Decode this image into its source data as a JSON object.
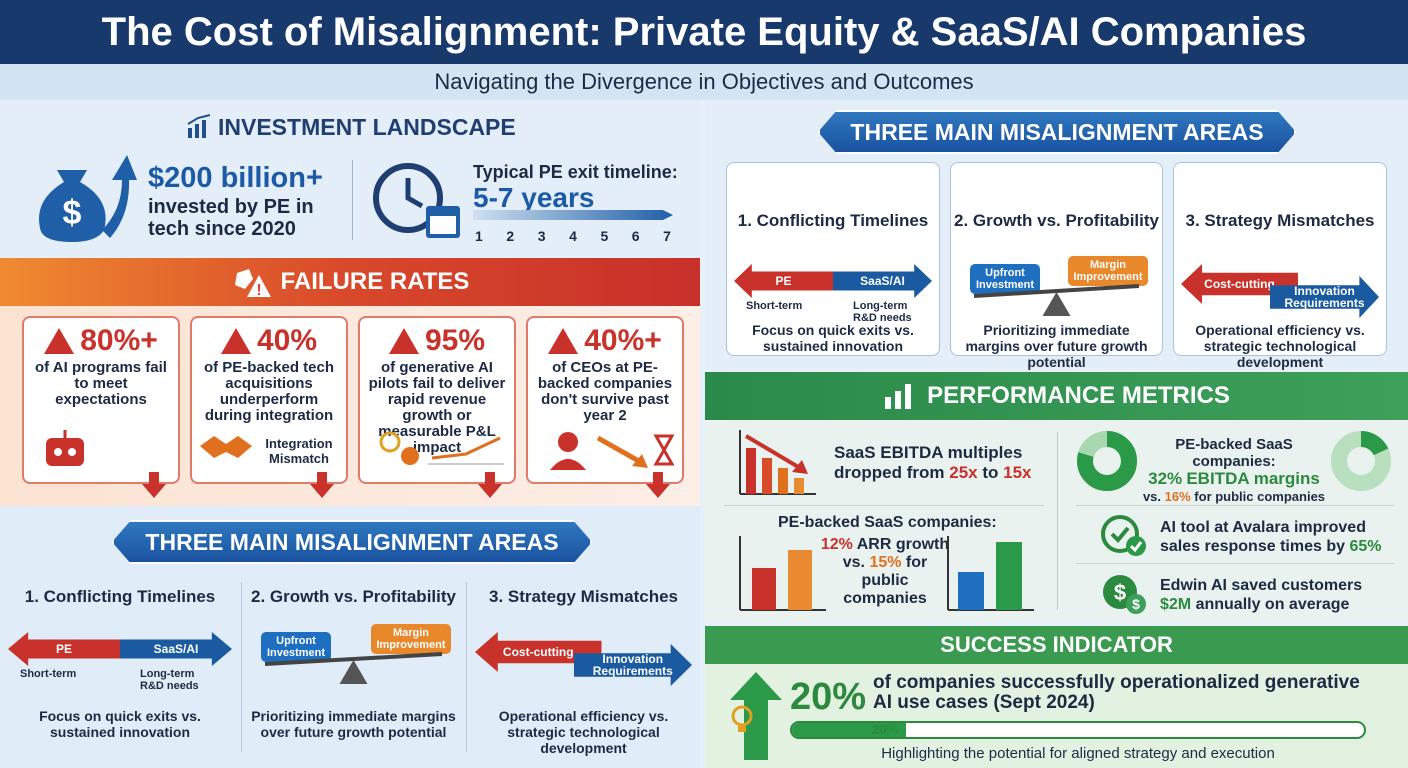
{
  "header": {
    "title": "The Cost of Misalignment: Private Equity & SaaS/AI Companies",
    "subtitle": "Navigating the Divergence in Objectives and Outcomes"
  },
  "investment": {
    "title": "INVESTMENT LANDSCAPE",
    "amount": "$200 billion+",
    "amount_text": "invested by PE in tech since 2020",
    "exit_label": "Typical PE exit timeline:",
    "exit_value": "5-7 years",
    "timeline": [
      "1",
      "2",
      "3",
      "4",
      "5",
      "6",
      "7"
    ]
  },
  "failure": {
    "title": "FAILURE RATES",
    "cards": [
      {
        "stat": "80%+",
        "text": "of AI programs fail to meet expectations"
      },
      {
        "stat": "40%",
        "text": "of PE-backed tech acquisitions underperform during integration",
        "note": "Integration Mismatch"
      },
      {
        "stat": "95%",
        "text": "of generative AI pilots fail to deliver rapid revenue growth or measurable P&L impact"
      },
      {
        "stat": "40%+",
        "text": "of CEOs at PE-backed companies don't survive past year 2"
      }
    ]
  },
  "misalignment_left": {
    "title": "THREE MAIN MISALIGNMENT AREAS",
    "areas": [
      {
        "title": "1. Conflicting Timelines",
        "left": "PE",
        "left_sub": "Short-term",
        "right": "SaaS/AI",
        "right_sub": "Long-term R&D needs",
        "desc": "Focus on quick exits vs. sustained innovation"
      },
      {
        "title": "2. Growth vs. Profitability",
        "left": "Upfront Investment",
        "right": "Margin Improvement",
        "desc": "Prioritizing immediate margins over future growth potential"
      },
      {
        "title": "3. Strategy Mismatches",
        "left": "Cost-cutting",
        "right": "Innovation Requirements",
        "desc": "Operational efficiency vs. strategic technological development"
      }
    ]
  },
  "misalignment_right": {
    "title": "THREE MAIN MISALIGNMENT AREAS",
    "areas": [
      {
        "title": "1. Conflicting Timelines",
        "left": "PE",
        "left_sub": "Short-term",
        "right": "SaaS/AI",
        "right_sub": "Long-term R&D needs",
        "desc": "Focus on quick exits vs. sustained innovation"
      },
      {
        "title": "2. Growth vs. Profitability",
        "left": "Upfront Investment",
        "right": "Margin Improvement",
        "desc": "Prioritizing immediate margins over future growth potential"
      },
      {
        "title": "3. Strategy Mismatches",
        "left": "Cost-cutting",
        "right": "Innovation Requirements",
        "desc": "Operational efficiency vs. strategic technological development"
      }
    ]
  },
  "performance": {
    "title": "PERFORMANCE METRICS",
    "ebitda": {
      "pre": "SaaS EBITDA multiples dropped from",
      "from": "25x",
      "mid": "to",
      "to": "15x"
    },
    "arr": {
      "label": "PE-backed SaaS companies:",
      "a": "12%",
      "a_text": "ARR growth vs.",
      "b": "15%",
      "b_text": "for public companies"
    },
    "margins": {
      "label": "PE-backed SaaS companies:",
      "a": "32%",
      "a_text": "EBITDA margins",
      "vs": "vs.",
      "b": "16%",
      "b_text": "for public companies"
    },
    "avalara": {
      "text": "AI tool at Avalara improved sales response times by",
      "value": "65%"
    },
    "edwin": {
      "text": "Edwin AI saved customers",
      "value": "$2M",
      "value_text": "annually on average"
    }
  },
  "success": {
    "title": "SUCCESS INDICATOR",
    "stat": "20%",
    "text": "of companies successfully operationalized generative AI use cases (Sept 2024)",
    "bar_label": "20%",
    "caption": "Highlighting the potential for aligned strategy and execution"
  }
}
